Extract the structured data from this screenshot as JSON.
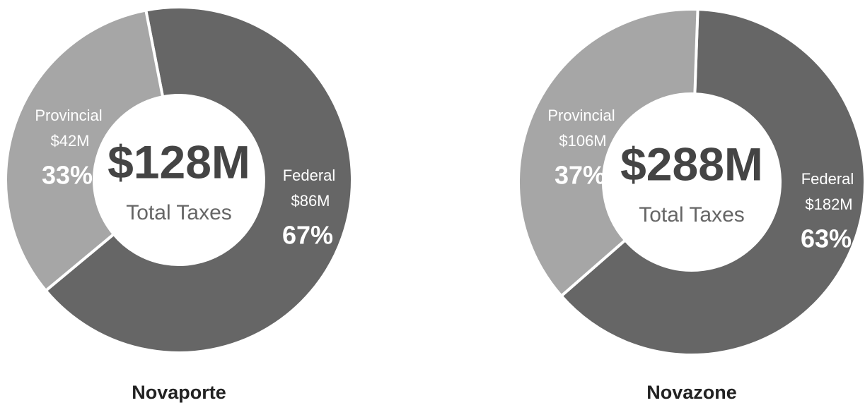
{
  "chart_data": [
    {
      "type": "donut",
      "title": "Novaporte",
      "categories": [
        "Federal",
        "Provincial"
      ],
      "values": [
        67,
        33
      ],
      "value_labels": [
        "67%",
        "33%"
      ],
      "amounts": [
        86,
        42
      ],
      "amount_labels": [
        "$86M",
        "$42M"
      ],
      "colors": [
        "#666666",
        "#a6a6a6"
      ],
      "center_label": "$128M",
      "center_sublabel": "Total Taxes"
    },
    {
      "type": "donut",
      "title": "Novazone",
      "categories": [
        "Federal",
        "Provincial"
      ],
      "values": [
        63,
        37
      ],
      "value_labels": [
        "63%",
        "37%"
      ],
      "amounts": [
        182,
        106
      ],
      "amount_labels": [
        "$182M",
        "$106M"
      ],
      "colors": [
        "#666666",
        "#a6a6a6"
      ],
      "center_label": "$288M",
      "center_sublabel": "Total Taxes"
    }
  ]
}
